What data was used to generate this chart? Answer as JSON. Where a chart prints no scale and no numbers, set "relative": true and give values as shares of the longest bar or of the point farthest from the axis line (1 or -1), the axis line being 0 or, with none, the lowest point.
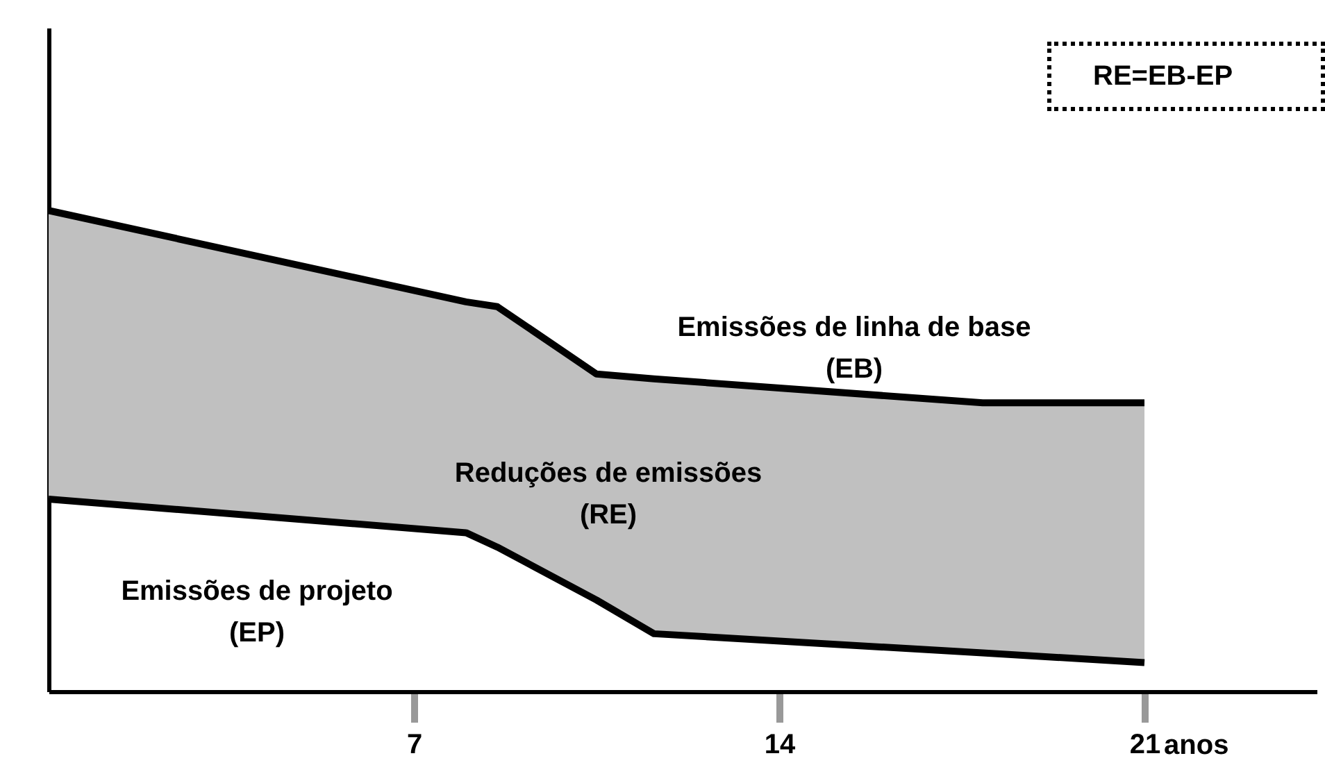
{
  "chart_data": {
    "type": "line",
    "relative": true,
    "xlabel": "anos",
    "xlim": [
      0,
      24.3
    ],
    "xticks": [
      7,
      14,
      21
    ],
    "tick_labels": "x",
    "grid": false,
    "marker": "none",
    "line_style": "solid",
    "x": [
      0,
      8,
      8.6,
      10.5,
      11.6,
      17.9,
      21
    ],
    "series": [
      {
        "color": "#000000",
        "values": [
          1,
          0.81,
          0.8,
          0.66,
          0.65,
          0.6,
          0.6
        ],
        "lower": [
          0.4,
          0.33,
          0.3,
          0.19,
          0.12,
          0.08,
          0.06
        ],
        "upper": [
          1,
          0.81,
          0.8,
          0.66,
          0.65,
          0.6,
          0.6
        ]
      },
      {
        "color": "#000000",
        "values": [
          0.4,
          0.33,
          0.3,
          0.19,
          0.12,
          0.08,
          0.06
        ]
      }
    ],
    "annotations": [
      "Emissões de linha de base (EB)",
      "Reduções de emissões (RE)",
      "Emissões de projeto (EP)",
      "RE=EB-EP"
    ]
  }
}
